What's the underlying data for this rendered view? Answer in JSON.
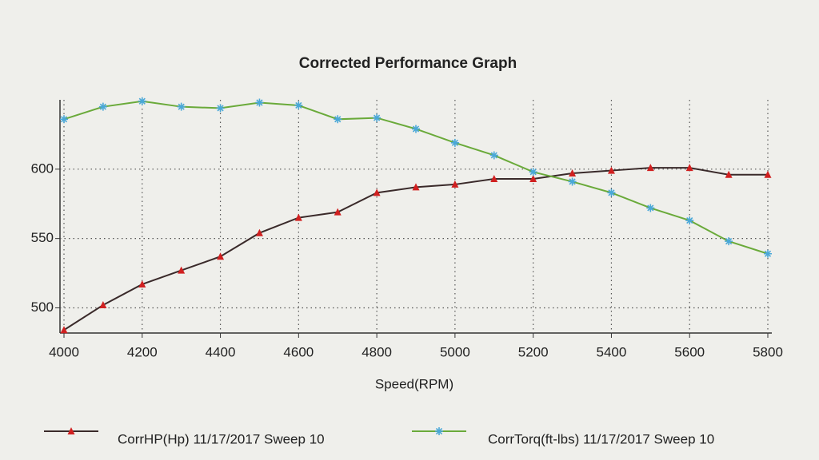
{
  "chart_data": {
    "type": "line",
    "title": "Corrected Performance Graph",
    "x_label": "Speed(RPM)",
    "x": [
      4000,
      4100,
      4200,
      4300,
      4400,
      4500,
      4600,
      4700,
      4800,
      4900,
      5000,
      5100,
      5200,
      5300,
      5400,
      5500,
      5600,
      5700,
      5800
    ],
    "series": [
      {
        "name": "CorrHP(Hp) 11/17/2017 Sweep 10",
        "color": "#3a2a2a",
        "marker_color": "#d02020",
        "marker": "triangle",
        "values": [
          484,
          502,
          517,
          527,
          537,
          554,
          565,
          569,
          583,
          587,
          589,
          593,
          593,
          597,
          599,
          601,
          601,
          596,
          596
        ]
      },
      {
        "name": "CorrTorq(ft-lbs) 11/17/2017 Sweep 10",
        "color": "#6aaa3a",
        "marker_color": "#4aa8d8",
        "marker": "star",
        "values": [
          636,
          645,
          649,
          645,
          644,
          648,
          646,
          636,
          637,
          629,
          619,
          610,
          598,
          591,
          583,
          572,
          563,
          548,
          539
        ]
      }
    ],
    "xlim": [
      4000,
      5800
    ],
    "xticks": [
      4000,
      4200,
      4400,
      4600,
      4800,
      5000,
      5200,
      5400,
      5600,
      5800
    ],
    "ylim": [
      483,
      650
    ],
    "yticks": [
      500,
      550,
      600
    ],
    "grid": true
  }
}
